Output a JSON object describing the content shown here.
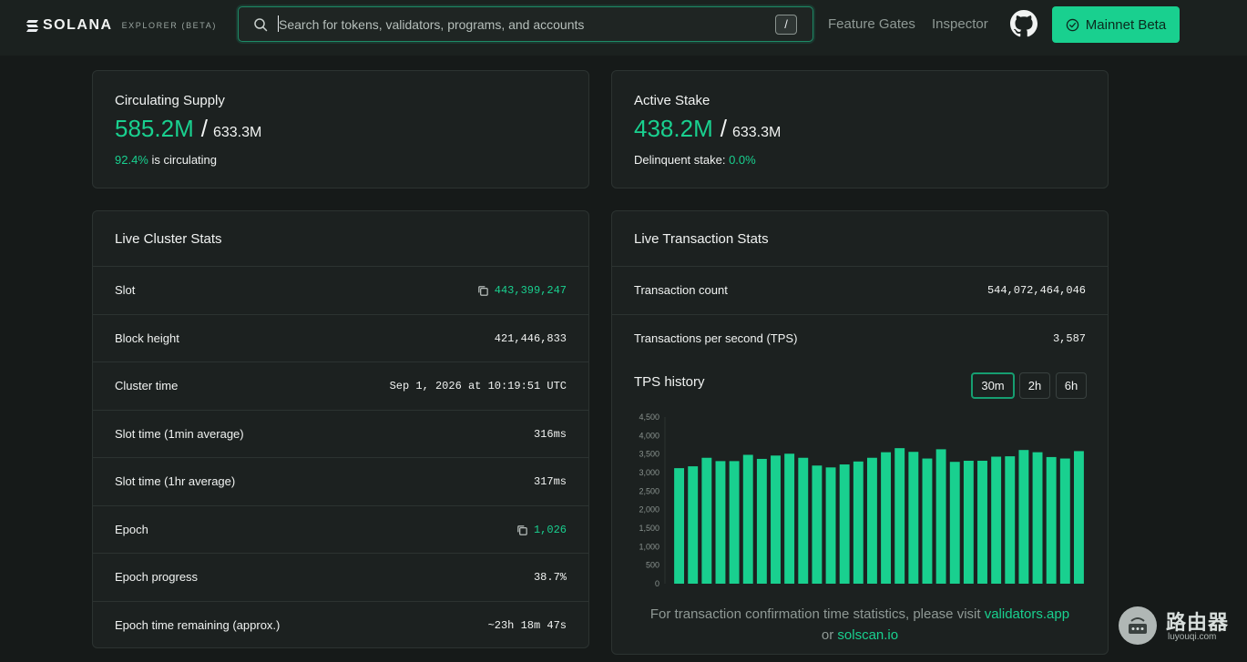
{
  "header": {
    "logo_text": "SOLANA",
    "logo_sub": "EXPLORER (BETA)",
    "search_placeholder": "Search for tokens, validators, programs, and accounts",
    "search_shortcut": "/",
    "nav": [
      "Feature Gates",
      "Inspector"
    ],
    "network_label": "Mainnet Beta"
  },
  "supply": {
    "title": "Circulating Supply",
    "value": "585.2M",
    "slash": "/",
    "total": "633.3M",
    "pct": "92.4%",
    "pct_suffix": " is circulating"
  },
  "stake": {
    "title": "Active Stake",
    "value": "438.2M",
    "slash": "/",
    "total": "633.3M",
    "delinquent_label": "Delinquent stake: ",
    "delinquent_value": "0.0%"
  },
  "cluster": {
    "title": "Live Cluster Stats",
    "rows": [
      {
        "label": "Slot",
        "value": "443,399,247"
      },
      {
        "label": "Block height",
        "value": "421,446,833"
      },
      {
        "label": "Cluster time",
        "value": "Sep 1, 2026 at 10:19:51 UTC"
      },
      {
        "label": "Slot time (1min average)",
        "value": "316ms"
      },
      {
        "label": "Slot time (1hr average)",
        "value": "317ms"
      },
      {
        "label": "Epoch",
        "value": "1,026"
      },
      {
        "label": "Epoch progress",
        "value": "38.7%"
      },
      {
        "label": "Epoch time remaining (approx.)",
        "value": "~23h 18m 47s"
      }
    ]
  },
  "tx": {
    "title": "Live Transaction Stats",
    "rows": [
      {
        "label": "Transaction count",
        "value": "544,072,464,046"
      },
      {
        "label": "Transactions per second (TPS)",
        "value": "3,587"
      }
    ],
    "history_title": "TPS history",
    "ranges": [
      "30m",
      "2h",
      "6h"
    ],
    "active_range": "30m",
    "note_prefix": "For transaction confirmation time statistics, please visit ",
    "note_link1": "validators.app",
    "note_mid": "or ",
    "note_link2": "solscan.io"
  },
  "chart_data": {
    "type": "bar",
    "ylim": [
      0,
      4500
    ],
    "yticks": [
      "4,500",
      "4,000",
      "3,500",
      "3,000",
      "2,500",
      "2,000",
      "1,500",
      "1,000",
      "500",
      "0"
    ],
    "values": [
      3120,
      3170,
      3400,
      3310,
      3310,
      3480,
      3370,
      3460,
      3510,
      3400,
      3190,
      3140,
      3220,
      3300,
      3400,
      3550,
      3660,
      3560,
      3380,
      3630,
      3290,
      3320,
      3320,
      3430,
      3440,
      3610,
      3550,
      3420,
      3380,
      3580
    ]
  },
  "watermark": {
    "cn": "路由器",
    "en": "luyouqi.com"
  }
}
